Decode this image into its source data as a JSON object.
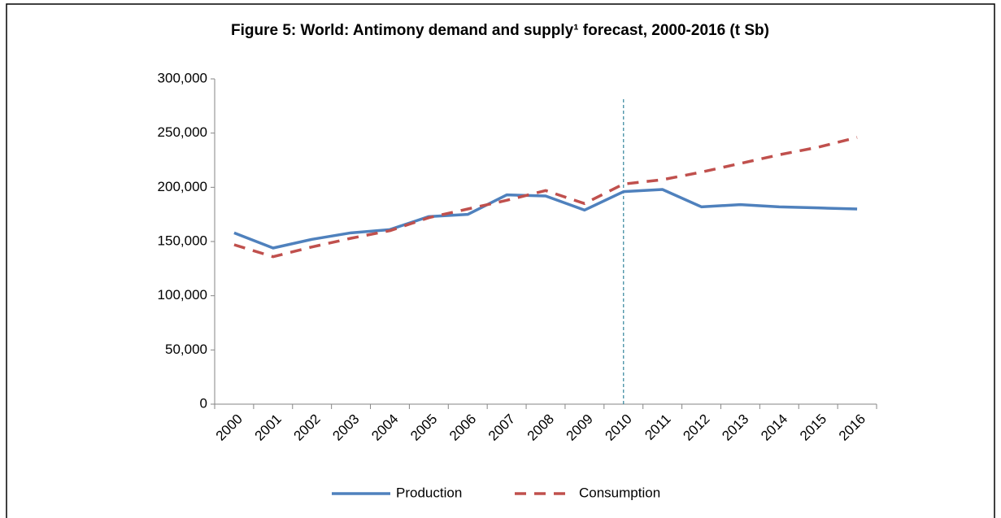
{
  "chart_data": {
    "type": "line",
    "title": "Figure 5: World: Antimony demand and supply¹ forecast, 2000-2016 (t Sb)",
    "categories": [
      "2000",
      "2001",
      "2002",
      "2003",
      "2004",
      "2005",
      "2006",
      "2007",
      "2008",
      "2009",
      "2010",
      "2011",
      "2012",
      "2013",
      "2014",
      "2015",
      "2016"
    ],
    "series": [
      {
        "name": "Production",
        "color": "#4f81bd",
        "dashed": false,
        "values": [
          158000,
          144000,
          152000,
          158000,
          161000,
          173000,
          175000,
          193000,
          192000,
          179000,
          196000,
          198000,
          182000,
          184000,
          182000,
          181000,
          180000
        ]
      },
      {
        "name": "Consumption",
        "color": "#c0504d",
        "dashed": true,
        "values": [
          147000,
          136000,
          145000,
          153000,
          160000,
          172000,
          180000,
          188000,
          197000,
          185000,
          203000,
          207000,
          214000,
          222000,
          230000,
          237000,
          246000
        ]
      }
    ],
    "ylim": [
      0,
      300000
    ],
    "yticks": [
      0,
      {
        "value": 50000,
        "label": "50,000"
      },
      {
        "value": 100000,
        "label": "100,000"
      },
      {
        "value": 150000,
        "label": "150,000"
      },
      {
        "value": 200000,
        "label": "200,000"
      },
      {
        "value": 250000,
        "label": "250,000"
      },
      {
        "value": 300000,
        "label": "300,000"
      }
    ],
    "grid": false,
    "legend": "bottom"
  }
}
